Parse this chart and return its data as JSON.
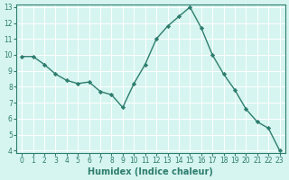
{
  "x": [
    0,
    1,
    2,
    3,
    4,
    5,
    6,
    7,
    8,
    9,
    10,
    11,
    12,
    13,
    14,
    15,
    16,
    17,
    18,
    19,
    20,
    21,
    22,
    23
  ],
  "y": [
    9.9,
    9.9,
    9.4,
    8.8,
    8.4,
    8.2,
    8.3,
    7.7,
    7.5,
    6.7,
    8.2,
    9.4,
    11.0,
    11.8,
    12.4,
    13.0,
    11.7,
    10.0,
    8.8,
    7.8,
    6.6,
    5.8,
    5.4,
    4.0
  ],
  "line_color": "#2e7d6e",
  "marker": "D",
  "marker_size": 2.2,
  "bg_color": "#d6f5f0",
  "grid_color": "#ffffff",
  "xlabel": "Humidex (Indice chaleur)",
  "ylim": [
    4,
    13
  ],
  "xlim": [
    -0.5,
    23.5
  ],
  "yticks": [
    4,
    5,
    6,
    7,
    8,
    9,
    10,
    11,
    12,
    13
  ],
  "xticks": [
    0,
    1,
    2,
    3,
    4,
    5,
    6,
    7,
    8,
    9,
    10,
    11,
    12,
    13,
    14,
    15,
    16,
    17,
    18,
    19,
    20,
    21,
    22,
    23
  ],
  "tick_label_fontsize": 5.5,
  "xlabel_fontsize": 7,
  "line_width": 1.0,
  "axes_color": "#2e7d6e",
  "spine_color": "#2e7d6e"
}
